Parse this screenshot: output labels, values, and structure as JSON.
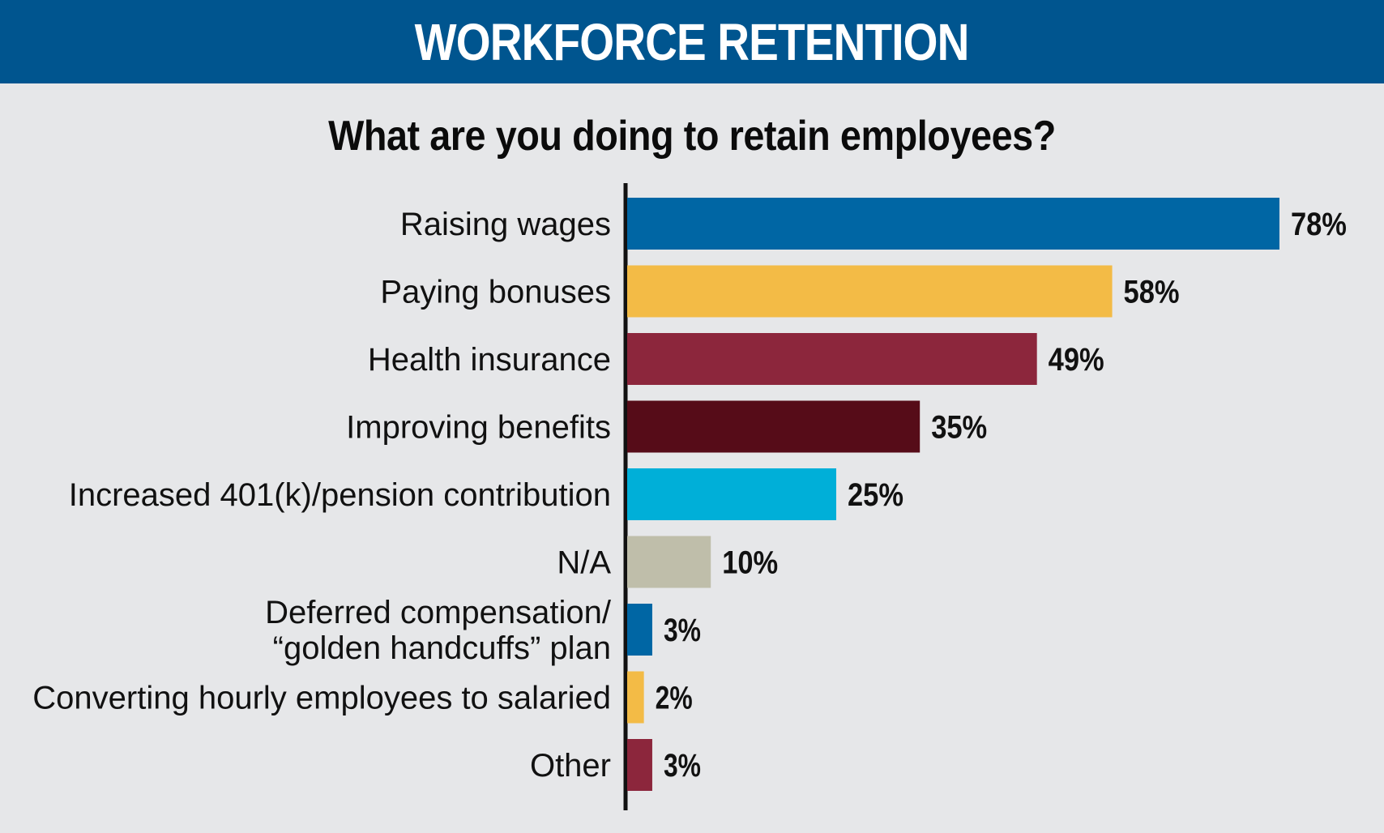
{
  "header": {
    "title": "WORKFORCE RETENTION"
  },
  "chart_data": {
    "type": "bar",
    "orientation": "horizontal",
    "title": "What are you doing to retain employees?",
    "categories": [
      [
        "Raising wages"
      ],
      [
        "Paying bonuses"
      ],
      [
        "Health insurance"
      ],
      [
        "Improving benefits"
      ],
      [
        "Increased 401(k)/pension contribution"
      ],
      [
        "N/A"
      ],
      [
        "Deferred compensation/",
        "“golden handcuffs” plan"
      ],
      [
        "Converting hourly employees to salaried"
      ],
      [
        "Other"
      ]
    ],
    "values": [
      78,
      58,
      49,
      35,
      25,
      10,
      3,
      2,
      3
    ],
    "value_labels": [
      "78%",
      "58%",
      "49%",
      "35%",
      "25%",
      "10%",
      "3%",
      "2%",
      "3%"
    ],
    "unit": "%",
    "colors": [
      "#0066a4",
      "#f3bb46",
      "#8c263c",
      "#560c18",
      "#00afd8",
      "#bfbeaa",
      "#0066a4",
      "#f3bb46",
      "#8c263c"
    ],
    "xlim": [
      0,
      100
    ],
    "grid": false,
    "legend": "none"
  }
}
